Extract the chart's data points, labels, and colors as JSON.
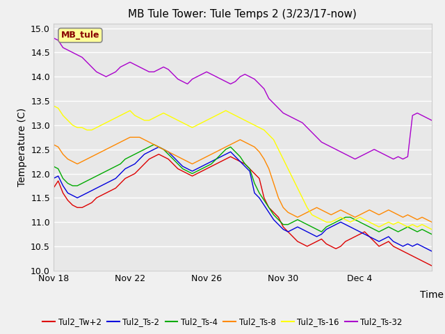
{
  "title": "MB Tule Tower: Tule Temps 2 (3/23/17-now)",
  "xlabel": "Time",
  "ylabel": "Temperature (C)",
  "ylim": [
    10.0,
    15.1
  ],
  "yticks": [
    10.0,
    10.5,
    11.0,
    11.5,
    12.0,
    12.5,
    13.0,
    13.5,
    14.0,
    14.5,
    15.0
  ],
  "bg_color": "#e8e8e8",
  "fig_color": "#f0f0f0",
  "station_label": "MB_tule",
  "station_label_bg": "#ffff99",
  "station_label_border": "#aaaaaa",
  "station_label_color": "#880000",
  "series": [
    {
      "name": "Tul2_Tw+2",
      "color": "#dd0000",
      "values": [
        11.7,
        11.85,
        11.6,
        11.45,
        11.35,
        11.3,
        11.3,
        11.35,
        11.4,
        11.5,
        11.55,
        11.6,
        11.65,
        11.7,
        11.8,
        11.9,
        11.95,
        12.0,
        12.1,
        12.2,
        12.3,
        12.35,
        12.4,
        12.35,
        12.3,
        12.2,
        12.1,
        12.05,
        12.0,
        11.95,
        12.0,
        12.05,
        12.1,
        12.15,
        12.2,
        12.25,
        12.3,
        12.35,
        12.3,
        12.25,
        12.2,
        12.1,
        12.0,
        11.9,
        11.5,
        11.3,
        11.2,
        11.1,
        10.9,
        10.8,
        10.7,
        10.6,
        10.55,
        10.5,
        10.55,
        10.6,
        10.65,
        10.55,
        10.5,
        10.45,
        10.5,
        10.6,
        10.65,
        10.7,
        10.75,
        10.8,
        10.7,
        10.6,
        10.5,
        10.55,
        10.6,
        10.5,
        10.45,
        10.4,
        10.35,
        10.3,
        10.25,
        10.2,
        10.15,
        10.1
      ]
    },
    {
      "name": "Tul2_Ts-2",
      "color": "#0000dd",
      "values": [
        11.9,
        11.95,
        11.75,
        11.6,
        11.55,
        11.5,
        11.55,
        11.6,
        11.65,
        11.7,
        11.75,
        11.8,
        11.85,
        11.9,
        12.0,
        12.1,
        12.15,
        12.2,
        12.3,
        12.4,
        12.45,
        12.5,
        12.55,
        12.5,
        12.45,
        12.35,
        12.25,
        12.15,
        12.1,
        12.05,
        12.1,
        12.15,
        12.2,
        12.25,
        12.3,
        12.35,
        12.4,
        12.45,
        12.35,
        12.25,
        12.15,
        12.05,
        11.6,
        11.5,
        11.35,
        11.2,
        11.05,
        10.95,
        10.85,
        10.8,
        10.85,
        10.9,
        10.85,
        10.8,
        10.75,
        10.7,
        10.75,
        10.85,
        10.9,
        10.95,
        11.0,
        10.95,
        10.9,
        10.85,
        10.8,
        10.75,
        10.7,
        10.65,
        10.6,
        10.65,
        10.7,
        10.6,
        10.55,
        10.5,
        10.55,
        10.5,
        10.55,
        10.5,
        10.45,
        10.4
      ]
    },
    {
      "name": "Tul2_Ts-4",
      "color": "#00aa00",
      "values": [
        12.15,
        12.1,
        11.9,
        11.8,
        11.75,
        11.75,
        11.8,
        11.85,
        11.9,
        11.95,
        12.0,
        12.05,
        12.1,
        12.15,
        12.2,
        12.3,
        12.35,
        12.4,
        12.45,
        12.5,
        12.55,
        12.6,
        12.55,
        12.5,
        12.4,
        12.3,
        12.2,
        12.1,
        12.05,
        12.0,
        12.05,
        12.1,
        12.15,
        12.2,
        12.3,
        12.4,
        12.5,
        12.55,
        12.45,
        12.35,
        12.2,
        12.1,
        11.8,
        11.6,
        11.45,
        11.3,
        11.15,
        11.05,
        10.95,
        10.95,
        11.0,
        11.05,
        11.0,
        10.95,
        10.9,
        10.85,
        10.8,
        10.9,
        10.95,
        11.0,
        11.05,
        11.1,
        11.1,
        11.05,
        11.0,
        10.95,
        10.9,
        10.85,
        10.8,
        10.85,
        10.9,
        10.85,
        10.8,
        10.85,
        10.9,
        10.85,
        10.8,
        10.85,
        10.8,
        10.75
      ]
    },
    {
      "name": "Tul2_Ts-8",
      "color": "#ff8800",
      "values": [
        12.6,
        12.55,
        12.4,
        12.3,
        12.25,
        12.2,
        12.25,
        12.3,
        12.35,
        12.4,
        12.45,
        12.5,
        12.55,
        12.6,
        12.65,
        12.7,
        12.75,
        12.75,
        12.75,
        12.7,
        12.65,
        12.6,
        12.55,
        12.5,
        12.45,
        12.4,
        12.35,
        12.3,
        12.25,
        12.2,
        12.25,
        12.3,
        12.35,
        12.4,
        12.45,
        12.5,
        12.55,
        12.6,
        12.65,
        12.7,
        12.65,
        12.6,
        12.55,
        12.45,
        12.3,
        12.1,
        11.8,
        11.5,
        11.3,
        11.2,
        11.15,
        11.1,
        11.15,
        11.2,
        11.25,
        11.3,
        11.25,
        11.2,
        11.15,
        11.2,
        11.25,
        11.2,
        11.15,
        11.1,
        11.15,
        11.2,
        11.25,
        11.2,
        11.15,
        11.2,
        11.25,
        11.2,
        11.15,
        11.1,
        11.15,
        11.1,
        11.05,
        11.1,
        11.05,
        11.0
      ]
    },
    {
      "name": "Tul2_Ts-16",
      "color": "#ffff00",
      "values": [
        13.4,
        13.35,
        13.2,
        13.1,
        13.0,
        12.95,
        12.95,
        12.9,
        12.9,
        12.95,
        13.0,
        13.05,
        13.1,
        13.15,
        13.2,
        13.25,
        13.3,
        13.2,
        13.15,
        13.1,
        13.1,
        13.15,
        13.2,
        13.25,
        13.2,
        13.15,
        13.1,
        13.05,
        13.0,
        12.95,
        13.0,
        13.05,
        13.1,
        13.15,
        13.2,
        13.25,
        13.3,
        13.25,
        13.2,
        13.15,
        13.1,
        13.05,
        13.0,
        12.95,
        12.9,
        12.8,
        12.7,
        12.5,
        12.3,
        12.1,
        11.9,
        11.7,
        11.5,
        11.3,
        11.15,
        11.1,
        11.05,
        11.0,
        11.0,
        11.05,
        11.1,
        11.05,
        11.0,
        11.05,
        11.1,
        11.05,
        11.0,
        10.95,
        10.9,
        10.95,
        11.0,
        10.95,
        11.0,
        10.95,
        10.9,
        10.95,
        10.9,
        10.95,
        10.9,
        10.85
      ]
    },
    {
      "name": "Tul2_Ts-32",
      "color": "#aa00cc",
      "values": [
        14.8,
        14.75,
        14.6,
        14.55,
        14.5,
        14.45,
        14.4,
        14.3,
        14.2,
        14.1,
        14.05,
        14.0,
        14.05,
        14.1,
        14.2,
        14.25,
        14.3,
        14.25,
        14.2,
        14.15,
        14.1,
        14.1,
        14.15,
        14.2,
        14.15,
        14.05,
        13.95,
        13.9,
        13.85,
        13.95,
        14.0,
        14.05,
        14.1,
        14.05,
        14.0,
        13.95,
        13.9,
        13.85,
        13.9,
        14.0,
        14.05,
        14.0,
        13.95,
        13.85,
        13.75,
        13.55,
        13.45,
        13.35,
        13.25,
        13.2,
        13.15,
        13.1,
        13.05,
        12.95,
        12.85,
        12.75,
        12.65,
        12.6,
        12.55,
        12.5,
        12.45,
        12.4,
        12.35,
        12.3,
        12.35,
        12.4,
        12.45,
        12.5,
        12.45,
        12.4,
        12.35,
        12.3,
        12.35,
        12.3,
        12.35,
        13.2,
        13.25,
        13.2,
        13.15,
        13.1
      ]
    }
  ],
  "xtick_labels": [
    "Nov 18",
    "Nov 22",
    "Nov 26",
    "Nov 30",
    "Dec 4"
  ],
  "xtick_positions": [
    0,
    16,
    32,
    48,
    64
  ],
  "title_fontsize": 11,
  "axis_fontsize": 10,
  "tick_fontsize": 9,
  "legend_fontsize": 8.5,
  "linewidth": 1.0
}
